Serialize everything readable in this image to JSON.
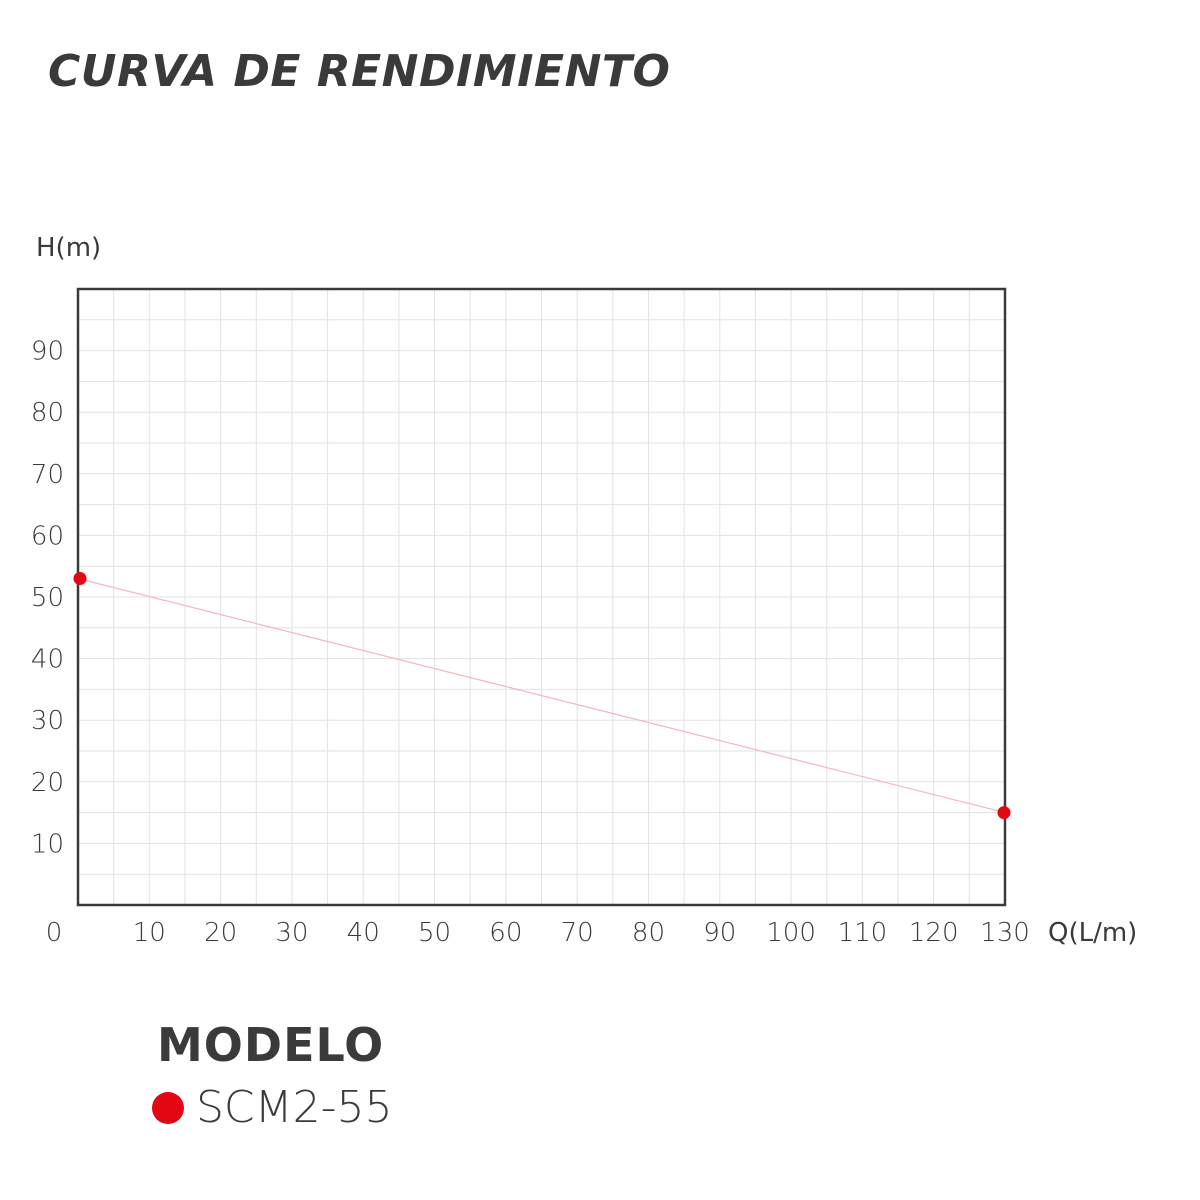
{
  "chart_data": {
    "type": "line",
    "title": "CURVA DE RENDIMIENTO",
    "xlabel": "Q(L/m)",
    "ylabel": "H(m)",
    "xlim": [
      0,
      130
    ],
    "ylim": [
      0,
      100
    ],
    "x_ticks": [
      0,
      10,
      20,
      30,
      40,
      50,
      60,
      70,
      80,
      90,
      100,
      110,
      120,
      130
    ],
    "y_ticks": [
      10,
      20,
      30,
      40,
      50,
      60,
      70,
      80,
      90
    ],
    "grid": true,
    "legend_title": "MODELO",
    "legend_position": "bottom-left",
    "series": [
      {
        "name": "SCM2-55",
        "color": "#e30613",
        "x": [
          0,
          130
        ],
        "y": [
          53,
          15
        ]
      }
    ]
  }
}
